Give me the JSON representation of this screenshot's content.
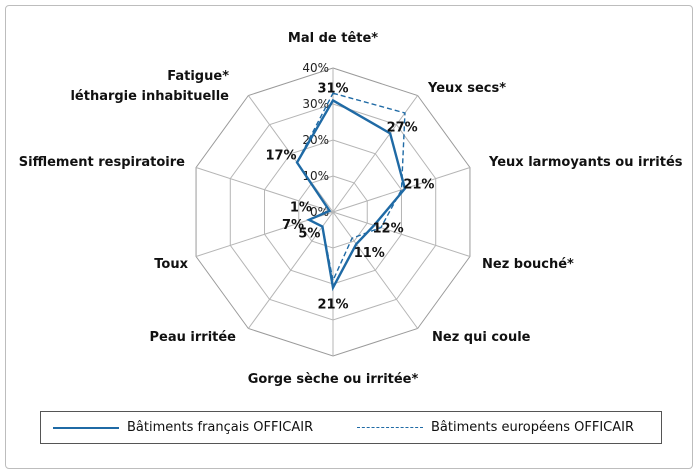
{
  "chart_data": {
    "type": "radar",
    "categories": [
      [
        "Mal de tête*"
      ],
      [
        "Yeux secs*"
      ],
      [
        "Yeux larmoyants ou irrités"
      ],
      [
        "Nez bouché*"
      ],
      [
        "Nez qui coule"
      ],
      [
        "Gorge sèche ou irritée*"
      ],
      [
        "Peau irritée"
      ],
      [
        "Toux"
      ],
      [
        "Sifflement respiratoire"
      ],
      [
        "Fatigue*",
        "léthargie inhabituelle"
      ]
    ],
    "rlim": [
      0,
      40
    ],
    "ticks": [
      "0%",
      "10%",
      "20%",
      "30%",
      "40%"
    ],
    "series": [
      {
        "name": "Bâtiments français OFFICAIR",
        "values": [
          31,
          27,
          21,
          12,
          11,
          21,
          5,
          7,
          1,
          17
        ],
        "labels": [
          "31%",
          "27%",
          "21%",
          "12%",
          "11%",
          "21%",
          "5%",
          "7%",
          "1%",
          "17%"
        ],
        "style": "solid"
      },
      {
        "name": "Bâtiments européens OFFICAIR",
        "values": [
          33,
          34,
          20,
          14,
          9,
          19,
          5,
          7,
          1,
          17
        ],
        "style": "dashed"
      }
    ],
    "color": "#1f6aa5",
    "grid": true,
    "legend": "bottom"
  }
}
